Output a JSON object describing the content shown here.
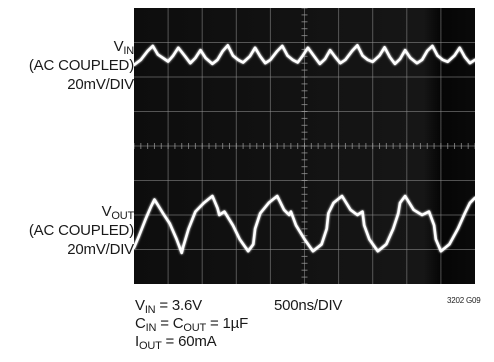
{
  "channels": [
    {
      "symbol": "V",
      "sub": "IN",
      "coupling": "(AC COUPLED)",
      "scale": "20mV/DIV"
    },
    {
      "symbol": "V",
      "sub": "OUT",
      "coupling": "(AC COUPLED)",
      "scale": "20mV/DIV"
    }
  ],
  "conditions": {
    "line1": {
      "symbol": "V",
      "sub": "IN",
      "rest": " = 3.6V"
    },
    "line2": {
      "symbol1": "C",
      "sub1": "IN",
      "mid": " = C",
      "sub2": "OUT",
      "rest": " = 1µF"
    },
    "line3": {
      "symbol": "I",
      "sub": "OUT",
      "rest": " = 60mA"
    }
  },
  "timebase": "500ns/DIV",
  "figure_id": "3202 G09",
  "chart_data": {
    "type": "line",
    "title": "",
    "xlabel": "500ns/DIV",
    "ylabel": "",
    "divisions": {
      "x": 10,
      "y": 8
    },
    "xlim": [
      0,
      10
    ],
    "ylim": [
      0,
      8
    ],
    "grid": true,
    "series": [
      {
        "name": "VIN",
        "baseline_div": 6.55,
        "x_div": [
          0.0,
          0.2,
          0.4,
          0.55,
          0.7,
          0.85,
          1.0,
          1.15,
          1.3,
          1.5,
          1.65,
          1.8,
          1.95,
          2.1,
          2.3,
          2.45,
          2.6,
          2.75,
          2.9,
          3.05,
          3.2,
          3.4,
          3.55,
          3.7,
          3.85,
          4.0,
          4.2,
          4.35,
          4.5,
          4.65,
          4.8,
          4.95,
          5.1,
          5.3,
          5.45,
          5.6,
          5.75,
          5.9,
          6.05,
          6.2,
          6.4,
          6.55,
          6.7,
          6.85,
          7.0,
          7.2,
          7.35,
          7.5,
          7.65,
          7.8,
          7.95,
          8.1,
          8.3,
          8.45,
          8.6,
          8.75,
          8.9,
          9.05,
          9.2,
          9.4,
          9.55,
          9.7,
          9.85,
          10.0
        ],
        "y_div": [
          6.35,
          6.5,
          6.75,
          6.9,
          6.65,
          6.55,
          6.45,
          6.62,
          6.85,
          6.6,
          6.4,
          6.55,
          6.78,
          6.55,
          6.38,
          6.5,
          6.75,
          6.92,
          6.62,
          6.5,
          6.42,
          6.6,
          6.85,
          6.6,
          6.4,
          6.5,
          6.75,
          6.9,
          6.62,
          6.5,
          6.42,
          6.62,
          6.85,
          6.58,
          6.38,
          6.52,
          6.78,
          6.58,
          6.4,
          6.5,
          6.76,
          6.92,
          6.62,
          6.5,
          6.44,
          6.62,
          6.86,
          6.58,
          6.38,
          6.52,
          6.78,
          6.56,
          6.4,
          6.5,
          6.76,
          6.9,
          6.62,
          6.5,
          6.44,
          6.62,
          6.85,
          6.58,
          6.4,
          6.5
        ]
      },
      {
        "name": "VOUT",
        "baseline_div": 1.8,
        "x_div": [
          0.0,
          0.15,
          0.35,
          0.5,
          0.6,
          0.85,
          1.05,
          1.25,
          1.4,
          1.45,
          1.6,
          1.8,
          2.05,
          2.3,
          2.45,
          2.5,
          2.65,
          2.9,
          3.1,
          3.35,
          3.5,
          3.55,
          3.7,
          3.95,
          4.2,
          4.4,
          4.55,
          4.6,
          4.75,
          5.0,
          5.25,
          5.5,
          5.65,
          5.7,
          5.85,
          6.1,
          6.35,
          6.55,
          6.7,
          6.75,
          6.9,
          7.15,
          7.4,
          7.6,
          7.75,
          7.8,
          7.95,
          8.2,
          8.45,
          8.65,
          8.8,
          8.85,
          9.0,
          9.25,
          9.5,
          9.7,
          9.85,
          10.0
        ],
        "y_div": [
          1.05,
          1.4,
          1.9,
          2.25,
          2.45,
          2.05,
          1.75,
          1.3,
          0.9,
          1.1,
          1.6,
          2.1,
          2.35,
          2.55,
          2.2,
          2.0,
          2.1,
          1.7,
          1.3,
          0.95,
          1.15,
          1.6,
          2.05,
          2.35,
          2.55,
          2.15,
          2.0,
          2.1,
          1.7,
          1.3,
          0.95,
          1.15,
          1.6,
          2.05,
          2.35,
          2.55,
          2.15,
          2.0,
          2.1,
          1.7,
          1.3,
          0.95,
          1.15,
          1.6,
          2.05,
          2.35,
          2.55,
          2.15,
          2.0,
          2.1,
          1.7,
          1.3,
          0.95,
          1.15,
          1.6,
          2.05,
          2.35,
          2.5
        ]
      }
    ]
  }
}
